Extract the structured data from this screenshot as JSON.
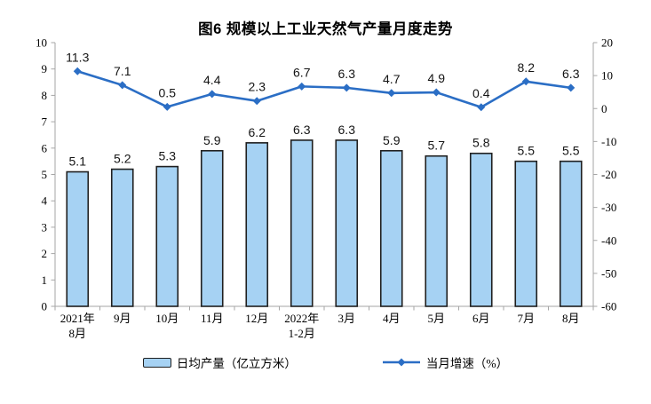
{
  "page": {
    "background": "#ffffff"
  },
  "chart": {
    "colors": {
      "bar_fill": "#A6D2F3",
      "bar_border": "#1f1f1f",
      "line": "#2B6EC5",
      "axis_line": "#a6a6a6",
      "label_text": "#000000"
    }
  },
  "chart_data": {
    "type": "bar+line",
    "title": "图6 规模以上工业天然气产量月度走势",
    "categories": [
      "2021年\n8月",
      "9月",
      "10月",
      "11月",
      "12月",
      "2022年\n1-2月",
      "3月",
      "4月",
      "5月",
      "6月",
      "7月",
      "8月"
    ],
    "series": [
      {
        "name": "日均产量（亿立方米）",
        "type": "bar",
        "axis": "left",
        "values": [
          5.1,
          5.2,
          5.3,
          5.9,
          6.2,
          6.3,
          6.3,
          5.9,
          5.7,
          5.8,
          5.5,
          5.5
        ]
      },
      {
        "name": "当月增速（%）",
        "type": "line",
        "axis": "right",
        "values": [
          11.3,
          7.1,
          0.5,
          4.4,
          2.3,
          6.7,
          6.3,
          4.7,
          4.9,
          0.4,
          8.2,
          6.3
        ]
      }
    ],
    "left_axis": {
      "min": 0,
      "max": 10,
      "step": 1,
      "ticks": [
        "0",
        "1",
        "2",
        "3",
        "4",
        "5",
        "6",
        "7",
        "8",
        "9",
        "10"
      ]
    },
    "right_axis": {
      "min": -60,
      "max": 20,
      "step": 10,
      "ticks": [
        "-60",
        "-50",
        "-40",
        "-30",
        "-20",
        "-10",
        "0",
        "10",
        "20"
      ]
    },
    "legend_position": "bottom",
    "grid": false
  }
}
